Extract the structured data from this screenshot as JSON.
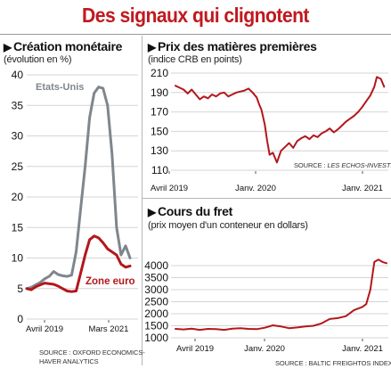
{
  "title": "Des signaux qui clignotent",
  "colors": {
    "title": "#c0191f",
    "red_line": "#b3171c",
    "grey_line": "#7f868d",
    "grid": "#d4d4d4",
    "text": "#111111"
  },
  "chart_data": [
    {
      "id": "creation_monetaire",
      "type": "line",
      "title": "Création monétaire",
      "subtitle": "(évolution en %)",
      "x_ticks": [
        "Avril 2019",
        "Mars 2021"
      ],
      "ylim": [
        0,
        40
      ],
      "y_ticks": [
        0,
        5,
        10,
        15,
        20,
        25,
        30,
        35,
        40
      ],
      "grid": true,
      "series": [
        {
          "name": "Etats-Unis",
          "color": "#7f868d",
          "x": [
            0,
            1,
            2,
            3,
            4,
            5,
            6,
            7,
            8,
            9,
            10,
            11,
            12,
            13,
            14,
            15,
            16,
            17,
            18,
            19,
            20,
            21,
            22,
            23
          ],
          "values": [
            5.0,
            5.2,
            5.6,
            6.0,
            6.6,
            7.0,
            7.8,
            7.3,
            7.1,
            7.0,
            7.2,
            11.0,
            18.0,
            25.0,
            33.0,
            37.0,
            38.0,
            37.8,
            35.0,
            27.0,
            15.0,
            10.5,
            12.0,
            10.0
          ]
        },
        {
          "name": "Zone euro",
          "color": "#b3171c",
          "x": [
            0,
            1,
            2,
            3,
            4,
            5,
            6,
            7,
            8,
            9,
            10,
            11,
            12,
            13,
            14,
            15,
            16,
            17,
            18,
            19,
            20,
            21,
            22,
            23
          ],
          "values": [
            5.0,
            4.8,
            5.3,
            5.6,
            5.9,
            5.8,
            5.7,
            5.4,
            5.0,
            4.6,
            4.5,
            4.6,
            7.5,
            10.5,
            13.0,
            13.6,
            13.3,
            12.5,
            11.5,
            11.0,
            10.5,
            9.0,
            8.5,
            8.7
          ]
        }
      ],
      "source": "SOURCE : OXFORD ECONOMICS-\nHAVER ANALYTICS"
    },
    {
      "id": "matieres_premieres",
      "type": "line",
      "title": "Prix des matières premières",
      "subtitle": "(indice CRB en points)",
      "x_ticks": [
        "Avril 2019",
        "Janv. 2020",
        "Janv. 2021"
      ],
      "ylim": [
        110,
        210
      ],
      "y_ticks": [
        110,
        130,
        150,
        170,
        190,
        210
      ],
      "grid": true,
      "series": [
        {
          "name": "Indice CRB",
          "color": "#b3171c",
          "x": [
            0,
            0.5,
            1,
            1.5,
            2,
            2.5,
            3,
            3.5,
            4,
            4.5,
            5,
            5.5,
            6,
            6.5,
            7,
            7.5,
            8,
            8.5,
            9,
            9.5,
            10,
            10.3,
            10.6,
            11,
            11.3,
            11.6,
            12,
            12.5,
            13,
            13.5,
            14,
            14.5,
            15,
            15.5,
            16,
            16.5,
            17,
            17.5,
            18,
            18.5,
            19,
            19.5,
            20,
            20.5,
            21,
            21.5,
            22,
            22.5,
            23,
            23.5,
            24,
            24.5,
            24.8,
            25.3,
            25.7
          ],
          "values": [
            197,
            195,
            193,
            189,
            193,
            188,
            183,
            186,
            184,
            188,
            186,
            189,
            190,
            186,
            188,
            190,
            191,
            192,
            194,
            190,
            185,
            178,
            172,
            157,
            140,
            126,
            128,
            118,
            130,
            134,
            138,
            133,
            140,
            143,
            145,
            142,
            146,
            144,
            148,
            150,
            153,
            149,
            152,
            156,
            160,
            163,
            166,
            170,
            175,
            181,
            187,
            196,
            206,
            204,
            196
          ]
        }
      ],
      "source": "SOURCE : LES ECHOS-INVESTIR"
    },
    {
      "id": "cours_du_fret",
      "type": "line",
      "title": "Cours du fret",
      "subtitle": "(prix moyen d'un conteneur en dollars)",
      "x_ticks": [
        "Avril 2019",
        "Janv. 2020",
        "Janv. 2021"
      ],
      "ylim": [
        1000,
        4000
      ],
      "y_ticks": [
        1000,
        1500,
        2000,
        2500,
        3000,
        3500,
        4000
      ],
      "grid": true,
      "series": [
        {
          "name": "Baltic Freightos Index",
          "color": "#b3171c",
          "x": [
            0,
            1,
            2,
            3,
            4,
            5,
            6,
            7,
            8,
            9,
            10,
            11,
            12,
            13,
            14,
            15,
            16,
            17,
            18,
            19,
            20,
            21,
            22,
            23,
            23.5,
            24,
            24.5,
            25,
            25.5,
            26
          ],
          "values": [
            1370,
            1350,
            1380,
            1330,
            1370,
            1360,
            1330,
            1380,
            1400,
            1370,
            1360,
            1420,
            1520,
            1470,
            1400,
            1430,
            1470,
            1500,
            1600,
            1780,
            1820,
            1900,
            2150,
            2280,
            2400,
            3000,
            4150,
            4250,
            4150,
            4100
          ]
        }
      ],
      "source": "SOURCE : BALTIC FREIGHTOS INDEX"
    }
  ],
  "panels": {
    "left": {
      "label_us": "Etats-Unis",
      "label_eu": "Zone euro",
      "source_line1": "SOURCE : OXFORD ECONOMICS-",
      "source_line2": "HAVER ANALYTICS"
    },
    "top_right": {
      "source_prefix": "SOURCE : ",
      "source_name": "LES ECHOS-INVESTIR"
    },
    "bottom_right": {
      "source": "SOURCE : BALTIC FREIGHTOS INDEX"
    }
  }
}
